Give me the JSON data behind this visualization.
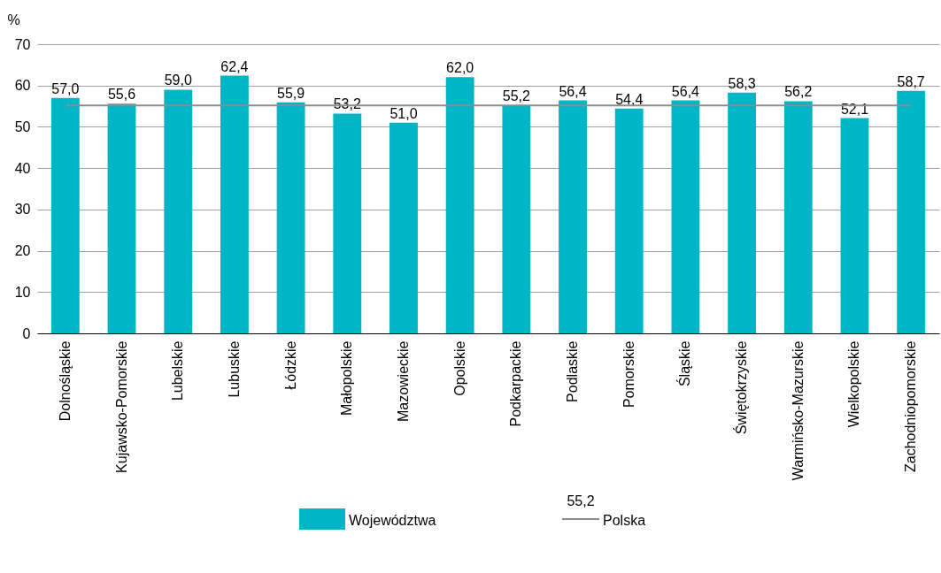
{
  "chart_data": {
    "type": "bar",
    "ylabel": "%",
    "categories": [
      "Dolnośląskie",
      "Kujawsko-Pomorskie",
      "Lubelskie",
      "Lubuskie",
      "Łódzkie",
      "Małopolskie",
      "Mazowieckie",
      "Opolskie",
      "Podkarpackie",
      "Podlaskie",
      "Pomorskie",
      "Śląskie",
      "Świętokrzyskie",
      "Warmińsko-Mazurskie",
      "Wielkopolskie",
      "Zachodniopomorskie"
    ],
    "series": [
      {
        "name": "Województwa",
        "color": "#00b5c6",
        "values": [
          57.0,
          55.6,
          59.0,
          62.4,
          55.9,
          53.2,
          51.0,
          62.0,
          55.2,
          56.4,
          54.4,
          56.4,
          58.3,
          56.2,
          52.1,
          58.7
        ],
        "value_labels": [
          "57,0",
          "55,6",
          "59,0",
          "62,4",
          "55,9",
          "53,2",
          "51,0",
          "62,0",
          "55,2",
          "56,4",
          "54,4",
          "56,4",
          "58,3",
          "56,2",
          "52,1",
          "58,7"
        ]
      },
      {
        "name": "Polska",
        "type": "line",
        "color": "#8c8c8c",
        "values": [
          55.2,
          55.2,
          55.2,
          55.2,
          55.2,
          55.2,
          55.2,
          55.2,
          55.2,
          55.2,
          55.2,
          55.2,
          55.2,
          55.2,
          55.2,
          55.2
        ]
      }
    ],
    "annotations": [
      "55,2"
    ],
    "ylim": [
      0,
      70
    ],
    "yticks": [
      0,
      10,
      20,
      30,
      40,
      50,
      60,
      70
    ],
    "grid": "y",
    "legend": "bottom"
  }
}
